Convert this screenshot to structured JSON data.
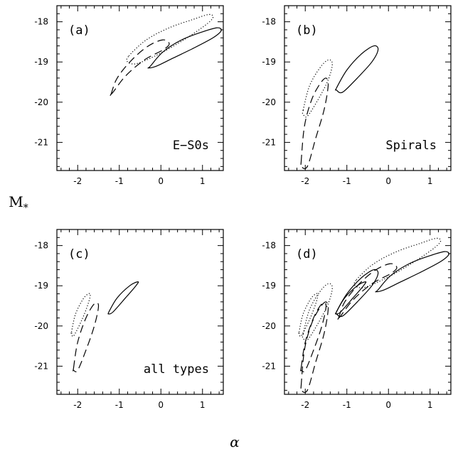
{
  "chart_data": {
    "type": "contour",
    "xlabel": "α",
    "ylabel": "M*",
    "xlim": [
      -2.5,
      1.5
    ],
    "ylim": [
      -21.7,
      -17.6
    ],
    "y_inverted": true,
    "xticks": [
      -2,
      -1,
      0,
      1
    ],
    "yticks": [
      -18,
      -19,
      -20,
      -21
    ],
    "panels": [
      {
        "label": "(a)",
        "annotation": "E−S0s",
        "contours": [
          {
            "style": "dotted",
            "x": [
              -0.77,
              -0.35,
              0.2,
              0.75,
              1.15,
              1.25,
              1.05,
              0.55,
              0.05,
              -0.35,
              -0.62,
              -0.8
            ],
            "y": [
              -18.85,
              -18.45,
              -18.15,
              -17.95,
              -17.82,
              -17.9,
              -18.1,
              -18.45,
              -18.75,
              -18.95,
              -19.05,
              -19.0
            ]
          },
          {
            "style": "dashed",
            "x": [
              -1.2,
              -1.05,
              -0.7,
              -0.3,
              0.05,
              0.2,
              0.05,
              -0.4,
              -0.85,
              -1.15,
              -1.25
            ],
            "y": [
              -19.8,
              -19.4,
              -18.95,
              -18.6,
              -18.45,
              -18.55,
              -18.7,
              -18.95,
              -19.35,
              -19.75,
              -19.85
            ]
          },
          {
            "style": "solid",
            "x": [
              -0.25,
              0.05,
              0.5,
              1.0,
              1.35,
              1.45,
              1.25,
              0.8,
              0.3,
              -0.1,
              -0.3
            ],
            "y": [
              -19.1,
              -18.75,
              -18.45,
              -18.25,
              -18.15,
              -18.22,
              -18.4,
              -18.65,
              -18.9,
              -19.1,
              -19.15
            ]
          }
        ]
      },
      {
        "label": "(b)",
        "annotation": "Spirals",
        "contours": [
          {
            "style": "dotted",
            "x": [
              -2.05,
              -1.9,
              -1.65,
              -1.45,
              -1.35,
              -1.45,
              -1.7,
              -1.95,
              -2.05
            ],
            "y": [
              -20.2,
              -19.6,
              -19.15,
              -18.95,
              -19.05,
              -19.45,
              -19.95,
              -20.35,
              -20.3
            ]
          },
          {
            "style": "dashed",
            "x": [
              -2.1,
              -2.02,
              -1.85,
              -1.65,
              -1.5,
              -1.45,
              -1.55,
              -1.75,
              -1.95,
              -2.1
            ],
            "y": [
              -21.5,
              -20.6,
              -19.95,
              -19.55,
              -19.4,
              -19.6,
              -20.2,
              -20.9,
              -21.6,
              -21.6
            ]
          },
          {
            "style": "solid",
            "x": [
              -1.25,
              -1.0,
              -0.65,
              -0.35,
              -0.25,
              -0.4,
              -0.75,
              -1.1,
              -1.25
            ],
            "y": [
              -19.65,
              -19.2,
              -18.8,
              -18.6,
              -18.7,
              -19.0,
              -19.4,
              -19.75,
              -19.7
            ]
          }
        ]
      },
      {
        "label": "(c)",
        "annotation": "all types",
        "contours": [
          {
            "style": "dotted",
            "x": [
              -2.15,
              -2.05,
              -1.85,
              -1.7,
              -1.75,
              -1.9,
              -2.1,
              -2.15
            ],
            "y": [
              -20.15,
              -19.7,
              -19.3,
              -19.2,
              -19.45,
              -19.85,
              -20.25,
              -20.15
            ]
          },
          {
            "style": "dashed",
            "x": [
              -2.1,
              -2.0,
              -1.8,
              -1.6,
              -1.5,
              -1.6,
              -1.8,
              -2.0,
              -2.1
            ],
            "y": [
              -21.05,
              -20.4,
              -19.8,
              -19.45,
              -19.5,
              -20.0,
              -20.6,
              -21.1,
              -21.1
            ]
          },
          {
            "style": "solid",
            "x": [
              -1.25,
              -1.05,
              -0.75,
              -0.55,
              -0.6,
              -0.85,
              -1.15,
              -1.25
            ],
            "y": [
              -19.65,
              -19.3,
              -19.0,
              -18.9,
              -19.0,
              -19.3,
              -19.65,
              -19.7
            ]
          }
        ]
      },
      {
        "label": "(d)",
        "annotation": "",
        "contours": [
          {
            "style": "dotted",
            "x": [
              -0.77,
              -0.35,
              0.2,
              0.75,
              1.15,
              1.25,
              1.05,
              0.55,
              0.05,
              -0.35,
              -0.62,
              -0.8
            ],
            "y": [
              -18.85,
              -18.45,
              -18.15,
              -17.95,
              -17.82,
              -17.9,
              -18.1,
              -18.45,
              -18.75,
              -18.95,
              -19.05,
              -19.0
            ]
          },
          {
            "style": "dashed",
            "x": [
              -1.2,
              -1.05,
              -0.7,
              -0.3,
              0.05,
              0.2,
              0.05,
              -0.4,
              -0.85,
              -1.15,
              -1.25
            ],
            "y": [
              -19.8,
              -19.4,
              -18.95,
              -18.6,
              -18.45,
              -18.55,
              -18.7,
              -18.95,
              -19.35,
              -19.75,
              -19.85
            ]
          },
          {
            "style": "solid",
            "x": [
              -0.25,
              0.05,
              0.5,
              1.0,
              1.35,
              1.45,
              1.25,
              0.8,
              0.3,
              -0.1,
              -0.3
            ],
            "y": [
              -19.1,
              -18.75,
              -18.45,
              -18.25,
              -18.15,
              -18.22,
              -18.4,
              -18.65,
              -18.9,
              -19.1,
              -19.15
            ]
          },
          {
            "style": "dotted",
            "x": [
              -2.05,
              -1.9,
              -1.65,
              -1.45,
              -1.35,
              -1.45,
              -1.7,
              -1.95,
              -2.05
            ],
            "y": [
              -20.2,
              -19.6,
              -19.15,
              -18.95,
              -19.05,
              -19.45,
              -19.95,
              -20.35,
              -20.3
            ]
          },
          {
            "style": "dashed",
            "x": [
              -2.1,
              -2.02,
              -1.85,
              -1.65,
              -1.5,
              -1.45,
              -1.55,
              -1.75,
              -1.95,
              -2.1
            ],
            "y": [
              -21.5,
              -20.6,
              -19.95,
              -19.55,
              -19.4,
              -19.6,
              -20.2,
              -20.9,
              -21.6,
              -21.6
            ]
          },
          {
            "style": "solid",
            "x": [
              -1.25,
              -1.0,
              -0.65,
              -0.35,
              -0.25,
              -0.4,
              -0.75,
              -1.1,
              -1.25
            ],
            "y": [
              -19.65,
              -19.2,
              -18.8,
              -18.6,
              -18.7,
              -19.0,
              -19.4,
              -19.75,
              -19.7
            ]
          },
          {
            "style": "dotted",
            "x": [
              -2.15,
              -2.05,
              -1.85,
              -1.7,
              -1.75,
              -1.9,
              -2.1,
              -2.15
            ],
            "y": [
              -20.15,
              -19.7,
              -19.3,
              -19.2,
              -19.45,
              -19.85,
              -20.25,
              -20.15
            ]
          },
          {
            "style": "dashed",
            "x": [
              -2.1,
              -2.0,
              -1.8,
              -1.6,
              -1.5,
              -1.6,
              -1.8,
              -2.0,
              -2.1
            ],
            "y": [
              -21.05,
              -20.4,
              -19.8,
              -19.45,
              -19.5,
              -20.0,
              -20.6,
              -21.1,
              -21.1
            ]
          },
          {
            "style": "solid",
            "x": [
              -1.25,
              -1.05,
              -0.75,
              -0.55,
              -0.6,
              -0.85,
              -1.15,
              -1.25
            ],
            "y": [
              -19.65,
              -19.3,
              -19.0,
              -18.9,
              -19.0,
              -19.3,
              -19.65,
              -19.7
            ]
          }
        ]
      }
    ]
  }
}
